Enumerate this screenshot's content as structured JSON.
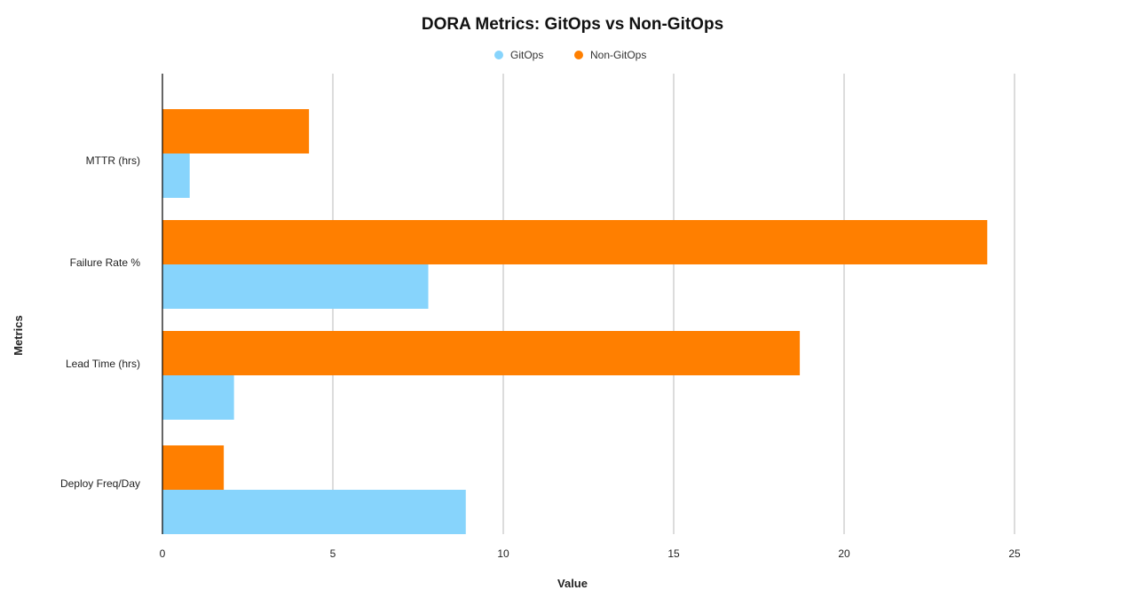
{
  "chart_data": {
    "type": "bar",
    "orientation": "horizontal",
    "title": "DORA Metrics: GitOps vs Non-GitOps",
    "xlabel": "Value",
    "ylabel": "Metrics",
    "categories": [
      "MTTR (hrs)",
      "Failure Rate %",
      "Lead Time (hrs)",
      "Deploy Freq/Day"
    ],
    "series": [
      {
        "name": "Non-GitOps",
        "color": "#FF7F00",
        "values": [
          4.3,
          24.2,
          18.7,
          1.8
        ]
      },
      {
        "name": "GitOps",
        "color": "#87D4FC",
        "values": [
          0.8,
          7.8,
          2.1,
          8.9
        ]
      }
    ],
    "legend": {
      "position": "top-center",
      "entries": [
        {
          "name": "GitOps",
          "color": "#87D4FC"
        },
        {
          "name": "Non-GitOps",
          "color": "#FF7F00"
        }
      ]
    },
    "xlim": [
      0,
      25
    ],
    "xticks": [
      "0",
      "5",
      "10",
      "15",
      "20",
      "25"
    ],
    "xtick_values": [
      0,
      5,
      10,
      15,
      20,
      25
    ],
    "grid": true
  }
}
